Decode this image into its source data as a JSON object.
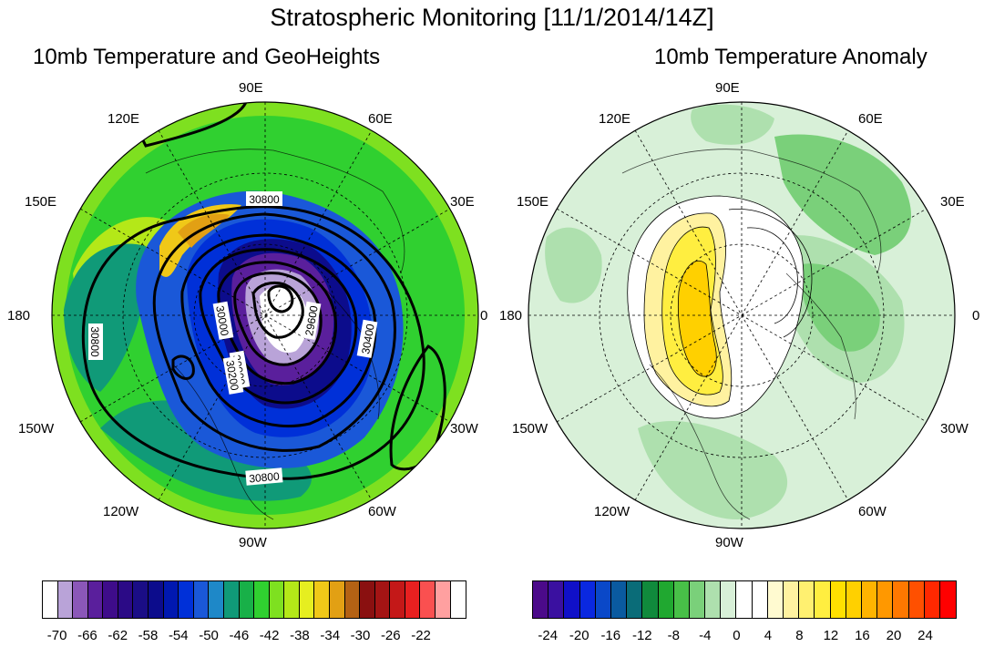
{
  "title": "Stratospheric Monitoring [11/1/2014/14Z]",
  "left_panel": {
    "title": "10mb Temperature and GeoHeights",
    "lon_labels": [
      "90E",
      "60E",
      "30E",
      "0",
      "30W",
      "60W",
      "90W",
      "120W",
      "150W",
      "180",
      "150E",
      "120E"
    ],
    "contour_labels": [
      "30800",
      "30000",
      "30400",
      "30800",
      "30800",
      "30000",
      "29600",
      "30200"
    ],
    "colorbar": {
      "colors": [
        "#ffffff",
        "#b9a3d8",
        "#8b57b8",
        "#5a1f9c",
        "#3e0c8a",
        "#2b0a86",
        "#1a0d86",
        "#0c0c8c",
        "#0018b0",
        "#0030d8",
        "#1a58d8",
        "#1e88c8",
        "#109a78",
        "#18b048",
        "#30d030",
        "#7ee020",
        "#b4e818",
        "#e6ee20",
        "#f0c818",
        "#e2a014",
        "#b46214",
        "#8a1010",
        "#a41414",
        "#c41818",
        "#e82020",
        "#fa5050",
        "#ffa0a0",
        "#ffffff"
      ],
      "labels": [
        "-70",
        "-66",
        "-62",
        "-58",
        "-54",
        "-50",
        "-46",
        "-42",
        "-38",
        "-34",
        "-30",
        "-26",
        "-22"
      ]
    }
  },
  "right_panel": {
    "title": "10mb Temperature Anomaly",
    "lon_labels": [
      "90E",
      "60E",
      "30E",
      "0",
      "30W",
      "60W",
      "90W",
      "120W",
      "150W",
      "180",
      "150E",
      "120E"
    ],
    "colorbar": {
      "colors": [
        "#4b0a8a",
        "#3a10a0",
        "#1010c8",
        "#0a28e0",
        "#0a48c8",
        "#0a5aa0",
        "#0a6c78",
        "#108a3c",
        "#20a830",
        "#48c048",
        "#7ad07a",
        "#aee0ae",
        "#d8f0d8",
        "#ffffff",
        "#ffffff",
        "#fffad0",
        "#fff2a0",
        "#fff070",
        "#ffee40",
        "#ffe000",
        "#ffd000",
        "#ffb400",
        "#ff9800",
        "#ff7800",
        "#ff5000",
        "#ff2800",
        "#ff0000"
      ],
      "labels": [
        "-24",
        "-20",
        "-16",
        "-12",
        "-8",
        "-4",
        "0",
        "4",
        "8",
        "12",
        "16",
        "20",
        "24"
      ]
    }
  }
}
